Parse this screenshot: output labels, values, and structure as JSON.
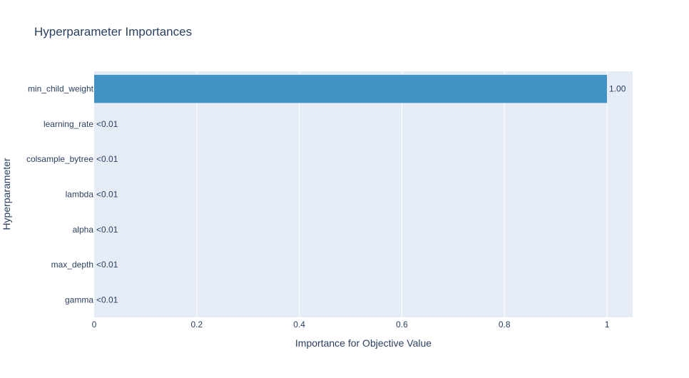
{
  "chart_data": {
    "type": "bar",
    "orientation": "horizontal",
    "title": "Hyperparameter Importances",
    "xlabel": "Importance for Objective Value",
    "ylabel": "Hyperparameter",
    "xlim": [
      0,
      1.05
    ],
    "xticks": [
      0,
      0.2,
      0.4,
      0.6,
      0.8,
      1
    ],
    "xtick_labels": [
      "0",
      "0.2",
      "0.4",
      "0.6",
      "0.8",
      "1"
    ],
    "categories": [
      "min_child_weight",
      "learning_rate",
      "colsample_bytree",
      "lambda",
      "alpha",
      "max_depth",
      "gamma"
    ],
    "values": [
      1.0,
      0.0,
      0.0,
      0.0,
      0.0,
      0.0,
      0.0
    ],
    "value_labels": [
      "1.00",
      "<0.01",
      "<0.01",
      "<0.01",
      "<0.01",
      "<0.01",
      "<0.01"
    ],
    "grid": true,
    "legend": "none"
  },
  "colors": {
    "bar": "#4292c6",
    "plot_background": "#e5ecf6",
    "gridline": "#ffffff",
    "text": "#2a3f5f",
    "title": "#2a3f5f"
  }
}
